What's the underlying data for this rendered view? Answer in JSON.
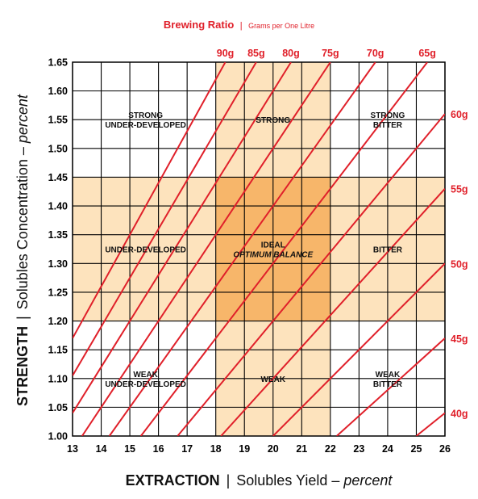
{
  "header": {
    "title": "Brewing Ratio",
    "separator": "|",
    "subtitle": "Grams per One Litre"
  },
  "colors": {
    "ratio_line": "#e0202a",
    "light_zone": "#fde3bd",
    "ideal_zone": "#f7b66a",
    "grid": "#000000"
  },
  "chart_data": {
    "type": "line",
    "title": "Brewing Ratio | Grams per One Litre",
    "xlabel": {
      "bold": "EXTRACTION",
      "separator": "|",
      "text": "Solubles Yield – ",
      "italic": "percent"
    },
    "ylabel": {
      "bold": "STRENGTH",
      "separator": "|",
      "text": "Solubles Concentration – ",
      "italic": "percent"
    },
    "xlim": [
      13,
      26
    ],
    "ylim": [
      1.0,
      1.65
    ],
    "x_ticks": [
      "13",
      "14",
      "15",
      "16",
      "17",
      "18",
      "19",
      "20",
      "21",
      "22",
      "23",
      "24",
      "25",
      "26"
    ],
    "y_ticks": [
      "1.00",
      "1.05",
      "1.10",
      "1.15",
      "1.20",
      "1.25",
      "1.30",
      "1.35",
      "1.40",
      "1.45",
      "1.50",
      "1.55",
      "1.60",
      "1.65"
    ],
    "grid": true,
    "ideal_extraction": [
      18,
      22
    ],
    "ideal_strength": [
      1.2,
      1.45
    ],
    "ratio_lines": [
      {
        "label": "90g",
        "grams": 90
      },
      {
        "label": "85g",
        "grams": 85
      },
      {
        "label": "80g",
        "grams": 80
      },
      {
        "label": "75g",
        "grams": 75
      },
      {
        "label": "70g",
        "grams": 70
      },
      {
        "label": "65g",
        "grams": 65
      },
      {
        "label": "60g",
        "grams": 60
      },
      {
        "label": "55g",
        "grams": 55
      },
      {
        "label": "50g",
        "grams": 50
      },
      {
        "label": "45g",
        "grams": 45
      },
      {
        "label": "40g",
        "grams": 40
      }
    ],
    "regions": [
      {
        "lines": [
          "STRONG",
          "UNDER-DEVELOPED"
        ],
        "x": 15.55,
        "y": 1.55
      },
      {
        "lines": [
          "STRONG"
        ],
        "x": 20,
        "y": 1.55
      },
      {
        "lines": [
          "STRONG",
          "BITTER"
        ],
        "x": 24,
        "y": 1.55
      },
      {
        "lines": [
          "UNDER-DEVELOPED"
        ],
        "x": 15.55,
        "y": 1.325
      },
      {
        "lines": [
          "IDEAL",
          "OPTIMUM BALANCE"
        ],
        "x": 20,
        "y": 1.325,
        "italic_second": true
      },
      {
        "lines": [
          "BITTER"
        ],
        "x": 24,
        "y": 1.325
      },
      {
        "lines": [
          "WEAK",
          "UNDER-DEVELOPED"
        ],
        "x": 15.55,
        "y": 1.1
      },
      {
        "lines": [
          "WEAK"
        ],
        "x": 20,
        "y": 1.1
      },
      {
        "lines": [
          "WEAK",
          "BITTER"
        ],
        "x": 24,
        "y": 1.1
      }
    ]
  }
}
